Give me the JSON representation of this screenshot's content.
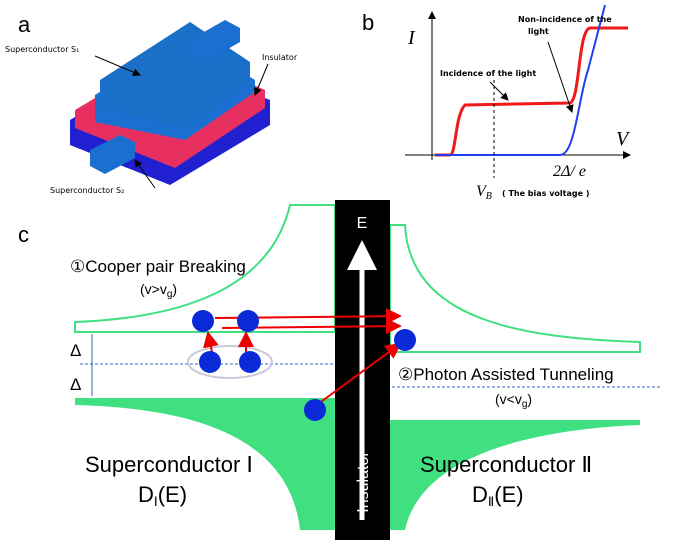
{
  "panel_a": {
    "label": "a",
    "superconductor_1": "Superconductor S₁",
    "insulator": "Insulator",
    "superconductor_2": "Superconductor S₂"
  },
  "panel_b": {
    "label": "b",
    "y_axis": "I",
    "x_axis": "V",
    "non_incidence": [
      "Non-incidence of the",
      "light"
    ],
    "incidence": "Incidence of the light",
    "gap_voltage": "2Δ/ e",
    "bias_symbol": {
      "main": "V",
      "sub": "B"
    },
    "bias_note": "( The bias voltage )"
  },
  "panel_c": {
    "label": "c",
    "energy": "E",
    "cooper": "①Cooper pair Breaking",
    "cooper_condition": {
      "main": "(v>v",
      "sub": "g",
      "end": ")"
    },
    "delta_upper": "Δ",
    "delta_lower": "Δ",
    "photon": "②Photon Assisted Tunneling",
    "photon_condition": {
      "main": "(v<v",
      "sub": "g",
      "end": ")"
    },
    "left_name": "Superconductor Ⅰ",
    "left_dos": {
      "main": "D",
      "sub": "Ⅰ",
      "end": "(E)"
    },
    "right_name": "Superconductor Ⅱ",
    "right_dos": {
      "main": "D",
      "sub": "Ⅱ",
      "end": "(E)"
    },
    "insulator": "Insulator"
  }
}
